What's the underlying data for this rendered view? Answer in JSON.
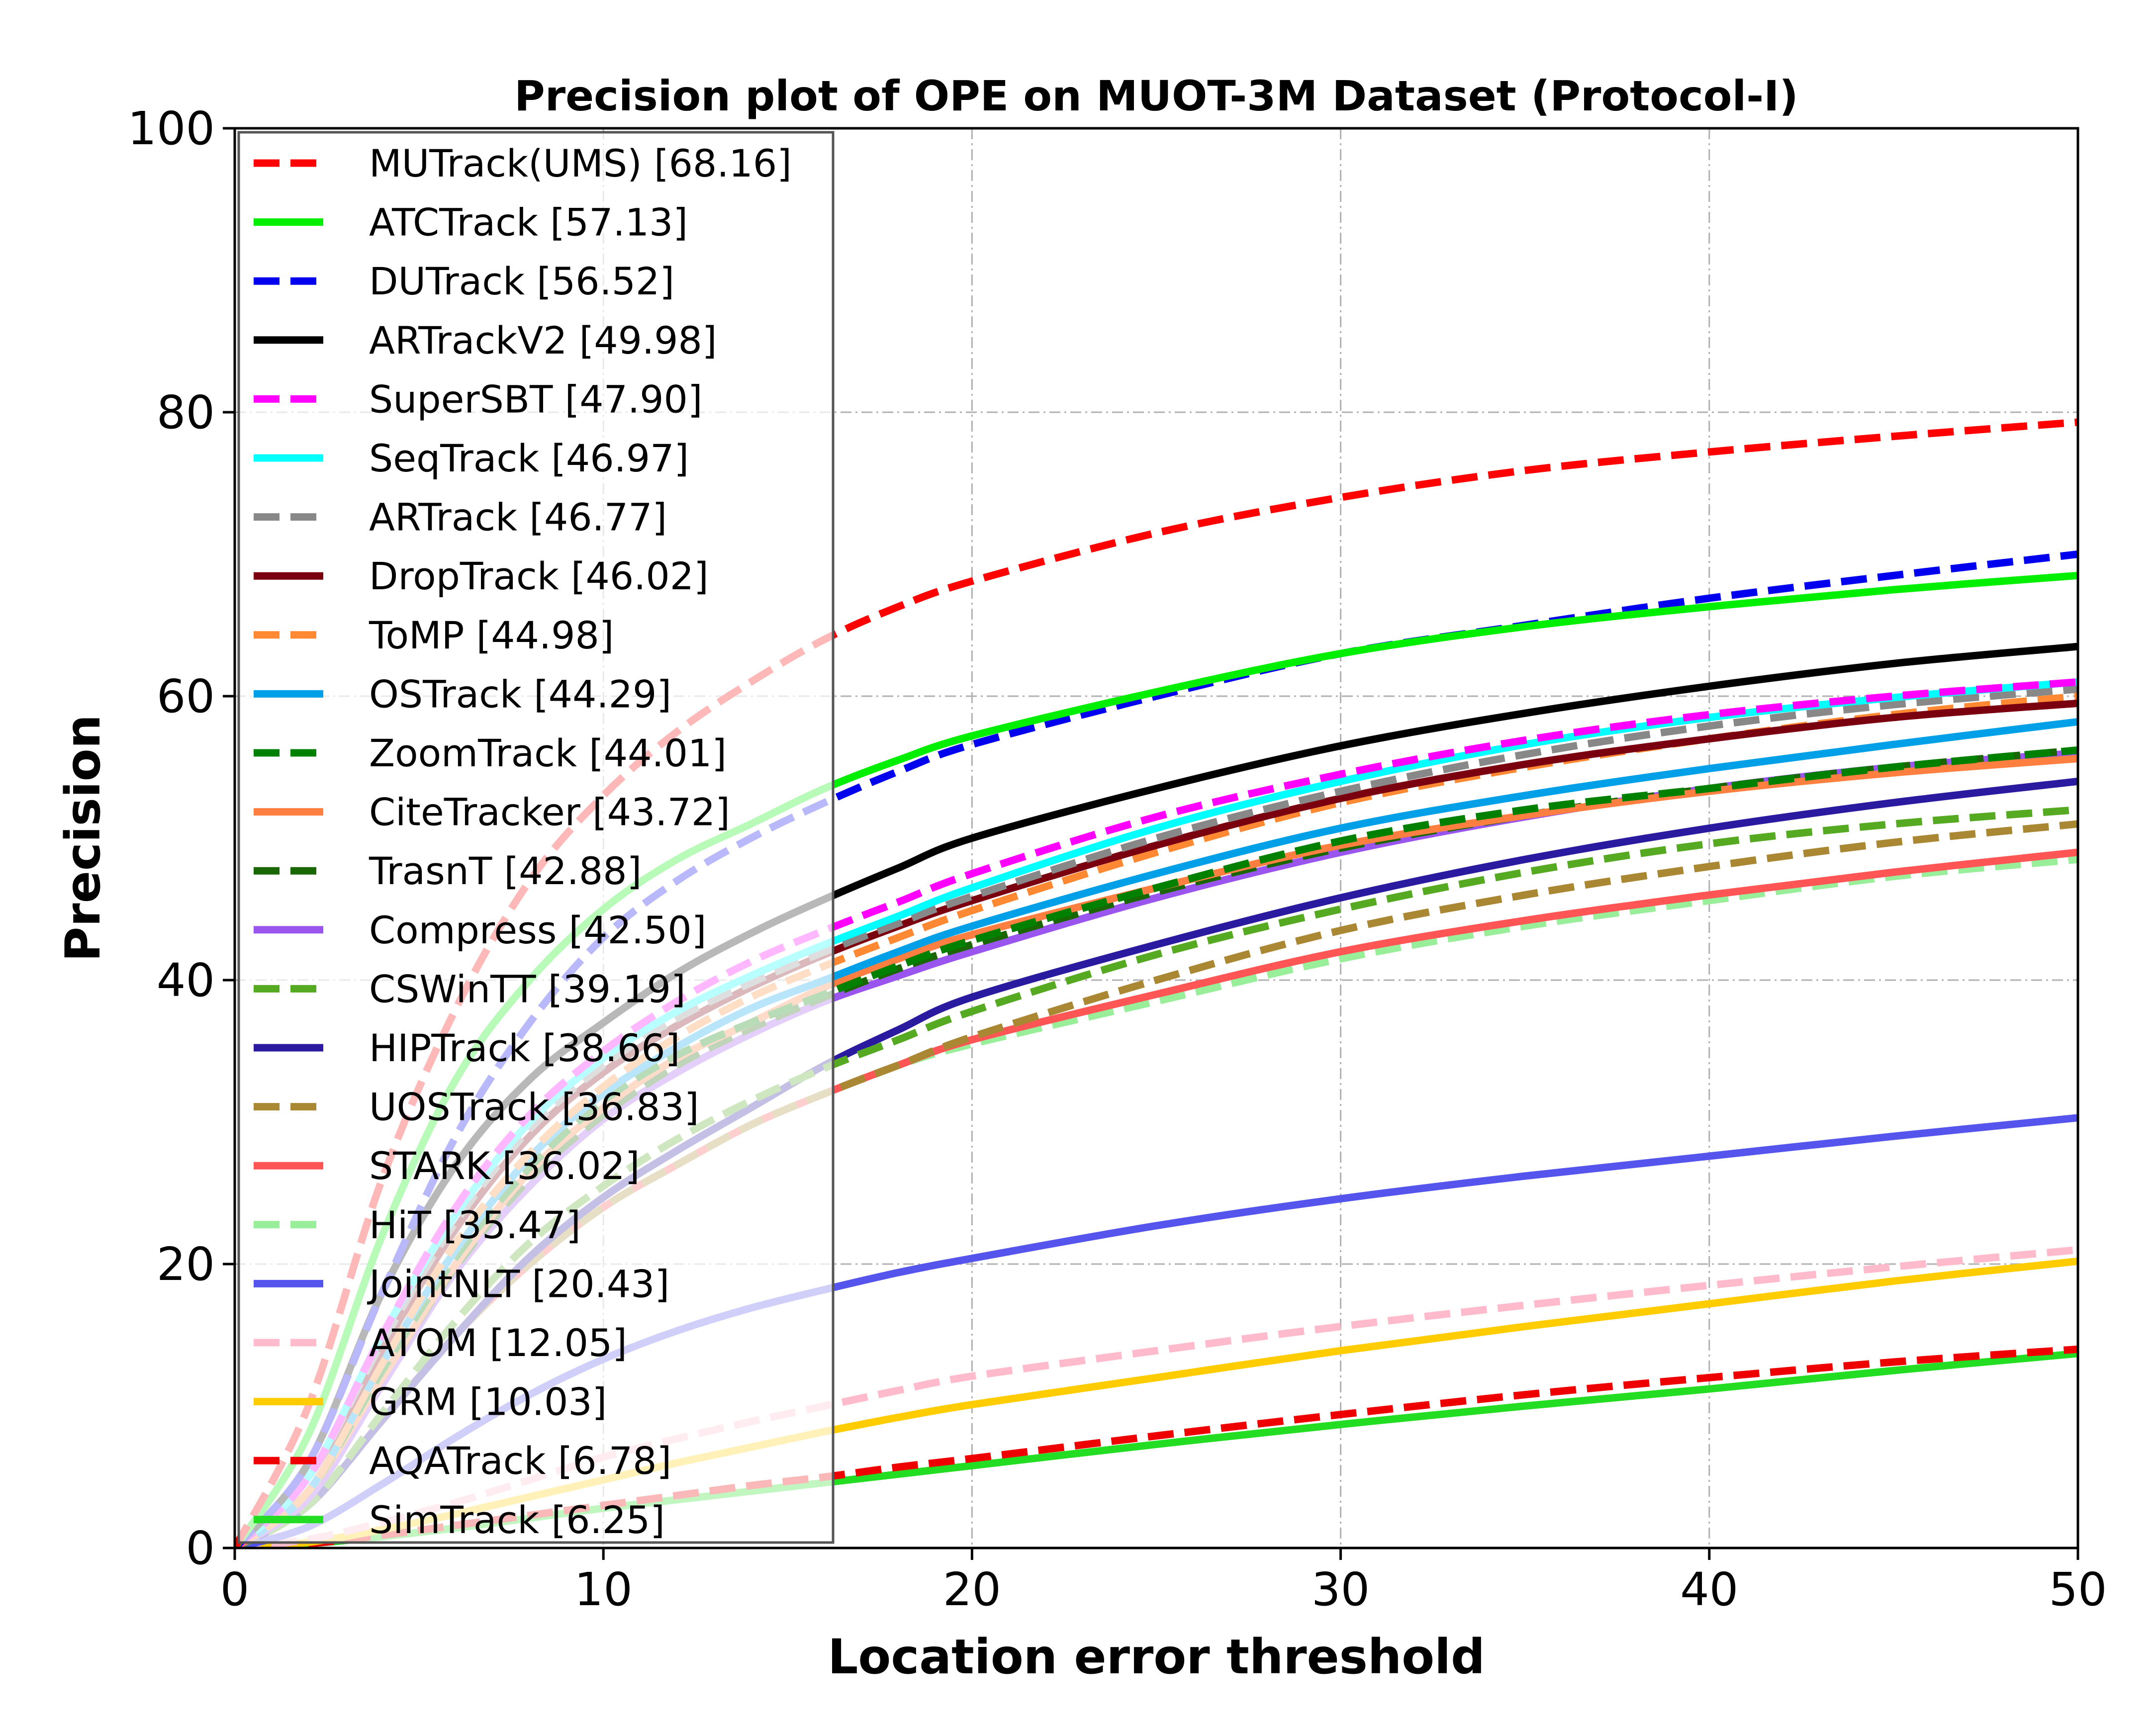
{
  "chart_data": {
    "type": "line",
    "title": "Precision plot of OPE on MUOT-3M Dataset (Protocol-I)",
    "xlabel": "Location error threshold",
    "ylabel": "Precision",
    "xlim": [
      0,
      50
    ],
    "ylim": [
      0,
      100
    ],
    "xticks": [
      0,
      10,
      20,
      30,
      40,
      50
    ],
    "yticks": [
      0,
      20,
      40,
      60,
      80,
      100
    ],
    "grid": true,
    "legend_position": "upper-left",
    "x": [
      0,
      2,
      4,
      6,
      8,
      10,
      12,
      14,
      16,
      18,
      20,
      25,
      30,
      35,
      40,
      45,
      50
    ],
    "series": [
      {
        "name": "MUTrack(UMS)",
        "score": "68.16",
        "color": "#ff0000",
        "dash": true,
        "values": [
          0,
          10,
          26,
          38,
          47,
          53,
          57.5,
          61,
          64,
          66.3,
          68.1,
          71.5,
          74,
          75.9,
          77.2,
          78.3,
          79.3
        ]
      },
      {
        "name": "ATCTrack",
        "score": "57.13",
        "color": "#00ee00",
        "dash": false,
        "values": [
          0,
          8,
          22,
          33,
          40,
          45,
          48.5,
          51,
          53.5,
          55.5,
          57.2,
          60.3,
          63,
          64.9,
          66.3,
          67.5,
          68.5
        ]
      },
      {
        "name": "DUTrack",
        "score": "56.52",
        "color": "#0000ee",
        "dash": true,
        "values": [
          0,
          6,
          18,
          29,
          37,
          43,
          47,
          50,
          52.5,
          54.7,
          56.6,
          60,
          63,
          65,
          66.9,
          68.5,
          70
        ]
      },
      {
        "name": "ARTrackV2",
        "score": "49.98",
        "color": "#000000",
        "dash": false,
        "values": [
          0,
          6,
          18,
          27,
          33,
          37,
          40.5,
          43.3,
          45.7,
          47.9,
          50,
          53.5,
          56.5,
          58.8,
          60.7,
          62.3,
          63.5
        ]
      },
      {
        "name": "SuperSBT",
        "score": "47.90",
        "color": "#ff00ff",
        "dash": true,
        "values": [
          0,
          5,
          15,
          24,
          30.5,
          35,
          38.5,
          41.3,
          43.5,
          45.5,
          47.5,
          51.5,
          54.5,
          56.9,
          58.7,
          60,
          61
        ]
      },
      {
        "name": "SeqTrack",
        "score": "46.97",
        "color": "#00ffff",
        "dash": false,
        "values": [
          0,
          5,
          15,
          23.5,
          30,
          34.5,
          37.8,
          40.3,
          42.5,
          44.5,
          46.5,
          50.7,
          54,
          56.6,
          58.5,
          59.9,
          61
        ]
      },
      {
        "name": "ARTrack",
        "score": "46.77",
        "color": "#888888",
        "dash": true,
        "values": [
          0,
          5,
          14.5,
          23,
          29.5,
          34,
          37.3,
          39.8,
          42,
          44,
          45.9,
          50,
          53.3,
          55.9,
          57.9,
          59.4,
          60.5
        ]
      },
      {
        "name": "DropTrack",
        "score": "46.02",
        "color": "#7a0010",
        "dash": false,
        "values": [
          0,
          5,
          14,
          22.5,
          29,
          33.5,
          36.8,
          39.5,
          41.8,
          43.8,
          45.6,
          49.5,
          52.8,
          55.2,
          57,
          58.5,
          59.5
        ]
      },
      {
        "name": "ToMP",
        "score": "44.98",
        "color": "#ff8833",
        "dash": true,
        "values": [
          0,
          4,
          13,
          21.5,
          27.8,
          32.5,
          36,
          38.8,
          41,
          43,
          44.9,
          49,
          52.5,
          55,
          57,
          58.7,
          60
        ]
      },
      {
        "name": "OSTrack",
        "score": "44.29",
        "color": "#00a0e8",
        "dash": false,
        "values": [
          0,
          4,
          13,
          21,
          27.5,
          32,
          35.3,
          38,
          40,
          42,
          43.8,
          47.5,
          50.7,
          53,
          54.9,
          56.6,
          58.2
        ]
      },
      {
        "name": "ZoomTrack",
        "score": "44.01",
        "color": "#008000",
        "dash": true,
        "values": [
          0,
          4,
          12.5,
          20.5,
          26.8,
          31.5,
          34.7,
          37,
          39,
          41,
          42.8,
          46.5,
          49.8,
          52,
          53.5,
          55,
          56.2
        ]
      },
      {
        "name": "CiteTracker",
        "score": "43.72",
        "color": "#ff7f40",
        "dash": false,
        "values": [
          0,
          4,
          12,
          20,
          26.5,
          31,
          34.5,
          37,
          39.5,
          41.5,
          43.2,
          46.5,
          49.5,
          51.6,
          53.3,
          54.6,
          55.6
        ]
      },
      {
        "name": "TrasnT",
        "score": "42.88",
        "color": "#1a6600",
        "dash": true,
        "values": [
          0,
          4,
          12,
          19.8,
          26,
          30.5,
          34,
          36.6,
          38.8,
          40.8,
          42.5,
          46.2,
          49.3,
          51.6,
          53.5,
          55,
          56.2
        ]
      },
      {
        "name": "Compress",
        "score": "42.50",
        "color": "#9955ee",
        "dash": false,
        "values": [
          0,
          3.5,
          11.5,
          19.5,
          25.5,
          30.2,
          33.5,
          36.2,
          38.5,
          40.3,
          42,
          45.8,
          49,
          51.5,
          53.5,
          55,
          56
        ]
      },
      {
        "name": "CSWinTT",
        "score": "39.19",
        "color": "#55aa22",
        "dash": true,
        "values": [
          0,
          3,
          9.5,
          16,
          21.5,
          25.5,
          28.8,
          31.5,
          33.8,
          35.8,
          37.8,
          41.8,
          45,
          47.6,
          49.6,
          51,
          52
        ]
      },
      {
        "name": "HIPTrack",
        "score": "38.66",
        "color": "#2a1aa0",
        "dash": false,
        "values": [
          0,
          3,
          9,
          15,
          20.5,
          24.7,
          28,
          31,
          34,
          36.5,
          38.8,
          42.5,
          45.8,
          48.5,
          50.7,
          52.5,
          54
        ]
      },
      {
        "name": "UOSTrack",
        "score": "36.83",
        "color": "#aa8833",
        "dash": true,
        "values": [
          0,
          3,
          9,
          15,
          20,
          24,
          27,
          29.8,
          32,
          34,
          36,
          40,
          43.5,
          46,
          48,
          49.7,
          51
        ]
      },
      {
        "name": "STARK",
        "score": "36.02",
        "color": "#ff5555",
        "dash": false,
        "values": [
          0,
          3,
          9,
          15,
          20,
          24,
          27,
          29.8,
          32,
          34,
          35.8,
          39,
          42,
          44.2,
          46,
          47.6,
          49
        ]
      },
      {
        "name": "HiT",
        "score": "35.47",
        "color": "#99ee99",
        "dash": true,
        "values": [
          0,
          3,
          9,
          15,
          20,
          24,
          27,
          29.8,
          32,
          34,
          35.5,
          38.5,
          41.5,
          43.8,
          45.6,
          47.3,
          48.5
        ]
      },
      {
        "name": "JointNLT",
        "score": "20.43",
        "color": "#5555ee",
        "dash": false,
        "values": [
          0,
          1.5,
          4.5,
          7.8,
          10.8,
          13.3,
          15.3,
          16.9,
          18.2,
          19.4,
          20.4,
          22.7,
          24.6,
          26.2,
          27.6,
          29,
          30.3
        ]
      },
      {
        "name": "ATOM",
        "score": "12.05",
        "color": "#ffbbcc",
        "dash": true,
        "values": [
          0,
          0.6,
          1.8,
          3.2,
          4.8,
          6.4,
          7.7,
          8.9,
          10,
          11.1,
          12.1,
          13.9,
          15.6,
          17.1,
          18.5,
          19.8,
          21
        ]
      },
      {
        "name": "GRM",
        "score": "10.03",
        "color": "#ffcc00",
        "dash": false,
        "values": [
          0,
          0.4,
          1.3,
          2.4,
          3.6,
          4.8,
          6,
          7.1,
          8.2,
          9.2,
          10.1,
          12,
          13.9,
          15.6,
          17.2,
          18.8,
          20.2
        ]
      },
      {
        "name": "AQATrack",
        "score": "6.78",
        "color": "#ee0000",
        "dash": true,
        "values": [
          0,
          0.3,
          0.9,
          1.6,
          2.3,
          3,
          3.7,
          4.4,
          5,
          5.7,
          6.3,
          7.9,
          9.4,
          10.8,
          12,
          13.1,
          14
        ]
      },
      {
        "name": "SimTrack",
        "score": "6.25",
        "color": "#22dd22",
        "dash": false,
        "values": [
          0,
          0.3,
          0.8,
          1.4,
          2.1,
          2.8,
          3.4,
          4,
          4.6,
          5.2,
          5.8,
          7.3,
          8.7,
          10,
          11.2,
          12.5,
          13.7
        ]
      }
    ]
  }
}
